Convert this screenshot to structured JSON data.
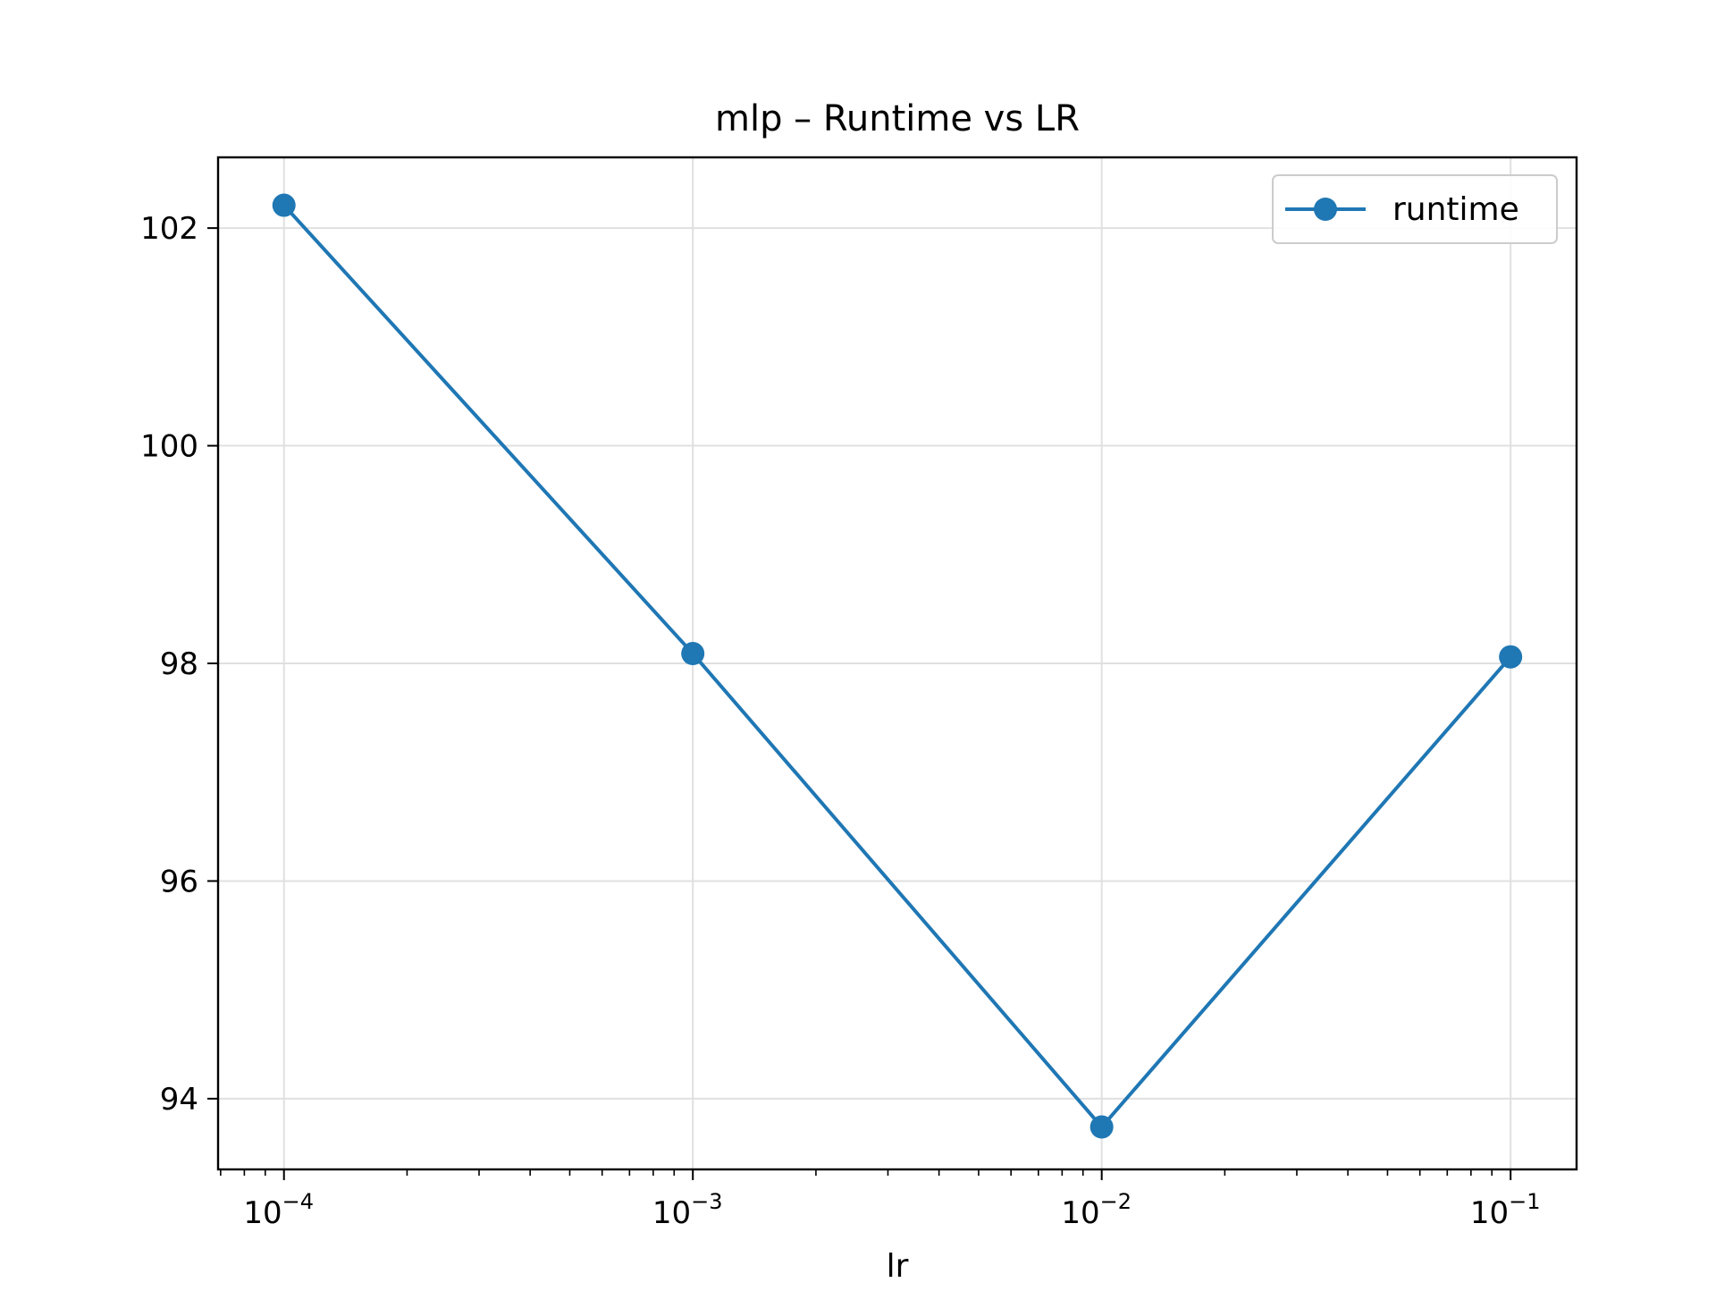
{
  "chart_data": {
    "type": "line",
    "title": "mlp – Runtime vs LR",
    "xlabel": "lr",
    "ylabel": "",
    "xscale": "log",
    "x": [
      0.0001,
      0.001,
      0.01,
      0.1
    ],
    "series": [
      {
        "name": "runtime",
        "values": [
          102.21,
          98.09,
          93.74,
          98.06
        ],
        "color": "#1f77b4",
        "marker": "circle"
      }
    ],
    "xlim": [
      6.9e-05,
      0.145
    ],
    "ylim": [
      93.35,
      102.65
    ],
    "x_ticks": [
      {
        "value": 0.0001,
        "base": "10",
        "exp": "−4"
      },
      {
        "value": 0.001,
        "base": "10",
        "exp": "−3"
      },
      {
        "value": 0.01,
        "base": "10",
        "exp": "−2"
      },
      {
        "value": 0.1,
        "base": "10",
        "exp": "−1"
      }
    ],
    "y_ticks": [
      94,
      96,
      98,
      100,
      102
    ],
    "grid": true,
    "legend": {
      "position": "top-right",
      "entries": [
        "runtime"
      ]
    }
  }
}
